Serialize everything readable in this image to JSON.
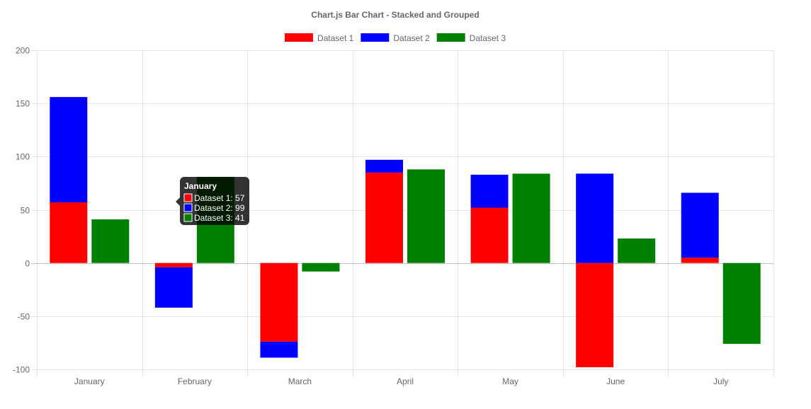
{
  "chart_data": {
    "type": "bar",
    "stacked": true,
    "grouped": true,
    "title": "Chart.js Bar Chart - Stacked and Grouped",
    "categories": [
      "January",
      "February",
      "March",
      "April",
      "May",
      "June",
      "July"
    ],
    "ylim": [
      -100,
      200
    ],
    "yticks": [
      200,
      150,
      100,
      50,
      0,
      -50,
      -100
    ],
    "grid": true,
    "legend_position": "top",
    "series": [
      {
        "name": "Dataset 1",
        "color": "#ff0000",
        "stack": "Stack 0",
        "values": [
          57,
          -4,
          -74,
          85,
          52,
          -98,
          5
        ]
      },
      {
        "name": "Dataset 2",
        "color": "#0000ff",
        "stack": "Stack 0",
        "values": [
          99,
          -38,
          -15,
          12,
          31,
          84,
          61
        ]
      },
      {
        "name": "Dataset 3",
        "color": "#008000",
        "stack": "Stack 1",
        "values": [
          41,
          81,
          -8,
          88,
          84,
          23,
          -76
        ]
      }
    ],
    "tooltip": {
      "category_index": 0,
      "title": "January",
      "lines": [
        "Dataset 1: 57",
        "Dataset 2: 99",
        "Dataset 3: 41"
      ]
    }
  }
}
